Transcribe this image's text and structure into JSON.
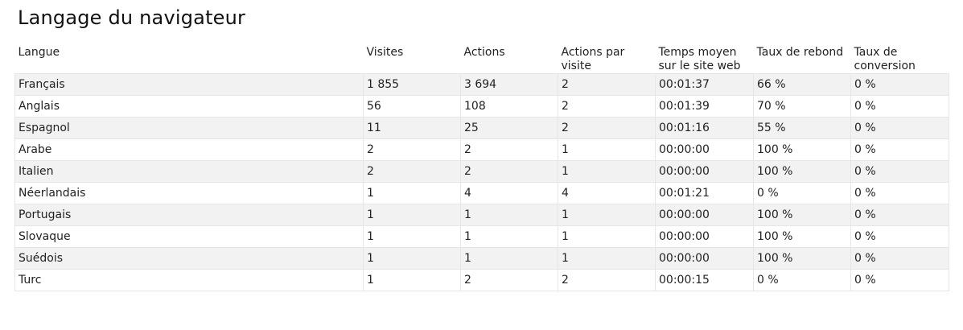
{
  "title": "Langage du navigateur",
  "table": {
    "headers": [
      "Langue",
      "Visites",
      "Actions",
      "Actions par visite",
      "Temps moyen sur le site web",
      "Taux de rebond",
      "Taux de conversion"
    ],
    "rows": [
      [
        "Français",
        "1 855",
        "3 694",
        "2",
        "00:01:37",
        "66 %",
        "0 %"
      ],
      [
        "Anglais",
        "56",
        "108",
        "2",
        "00:01:39",
        "70 %",
        "0 %"
      ],
      [
        "Espagnol",
        "11",
        "25",
        "2",
        "00:01:16",
        "55 %",
        "0 %"
      ],
      [
        "Arabe",
        "2",
        "2",
        "1",
        "00:00:00",
        "100 %",
        "0 %"
      ],
      [
        "Italien",
        "2",
        "2",
        "1",
        "00:00:00",
        "100 %",
        "0 %"
      ],
      [
        "Néerlandais",
        "1",
        "4",
        "4",
        "00:01:21",
        "0 %",
        "0 %"
      ],
      [
        "Portugais",
        "1",
        "1",
        "1",
        "00:00:00",
        "100 %",
        "0 %"
      ],
      [
        "Slovaque",
        "1",
        "1",
        "1",
        "00:00:00",
        "100 %",
        "0 %"
      ],
      [
        "Suédois",
        "1",
        "1",
        "1",
        "00:00:00",
        "100 %",
        "0 %"
      ],
      [
        "Turc",
        "1",
        "2",
        "2",
        "00:00:15",
        "0 %",
        "0 %"
      ]
    ]
  }
}
